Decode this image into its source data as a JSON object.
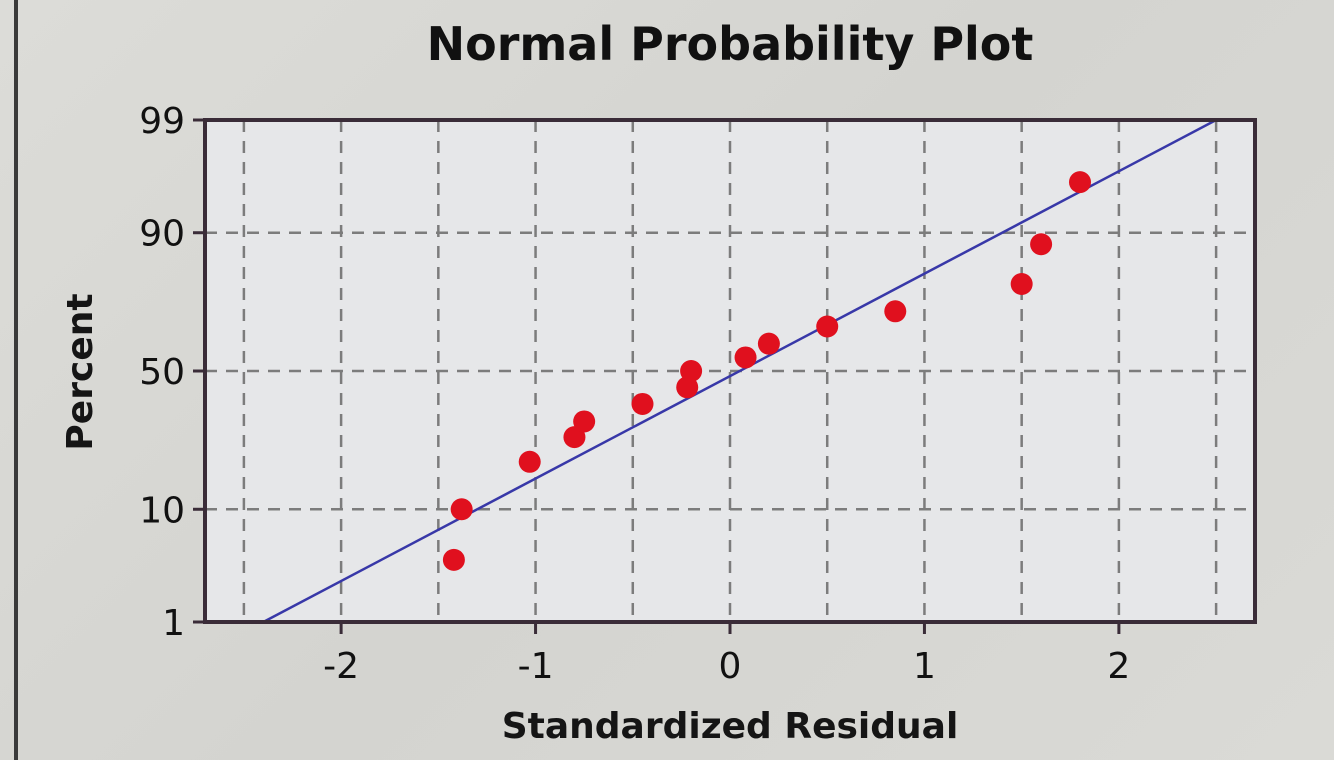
{
  "chart_data": {
    "type": "scatter",
    "title": "Normal Probability Plot",
    "xlabel": "Standardized Residual",
    "ylabel": "Percent",
    "xlim": [
      -2.7,
      2.7
    ],
    "ylim": [
      1,
      99
    ],
    "y_scale": "normal-probability",
    "grid": true,
    "x_ticks": [
      -2,
      -1,
      0,
      1,
      2
    ],
    "x_tick_labels": [
      "-2",
      "-1",
      "0",
      "1",
      "2"
    ],
    "y_ticks": [
      1,
      10,
      50,
      90,
      99
    ],
    "y_tick_labels": [
      "1",
      "10",
      "50",
      "90",
      "99"
    ],
    "fit_line": {
      "x": [
        -2.4,
        2.5
      ],
      "y": [
        1,
        99
      ]
    },
    "points": [
      {
        "x": -1.42,
        "y": 4
      },
      {
        "x": -1.38,
        "y": 10
      },
      {
        "x": -1.03,
        "y": 20
      },
      {
        "x": -0.8,
        "y": 27
      },
      {
        "x": -0.75,
        "y": 32
      },
      {
        "x": -0.45,
        "y": 38
      },
      {
        "x": -0.22,
        "y": 44
      },
      {
        "x": -0.2,
        "y": 50
      },
      {
        "x": 0.08,
        "y": 55
      },
      {
        "x": 0.2,
        "y": 60
      },
      {
        "x": 0.5,
        "y": 66
      },
      {
        "x": 0.85,
        "y": 71
      },
      {
        "x": 1.5,
        "y": 79
      },
      {
        "x": 1.6,
        "y": 88
      },
      {
        "x": 1.8,
        "y": 96
      }
    ],
    "colors": {
      "points": "#e0101e",
      "line": "#3838a8",
      "plot_bg": "#e6e7e9",
      "grid": "#7c7c7c",
      "border": "#3a2c38"
    }
  }
}
